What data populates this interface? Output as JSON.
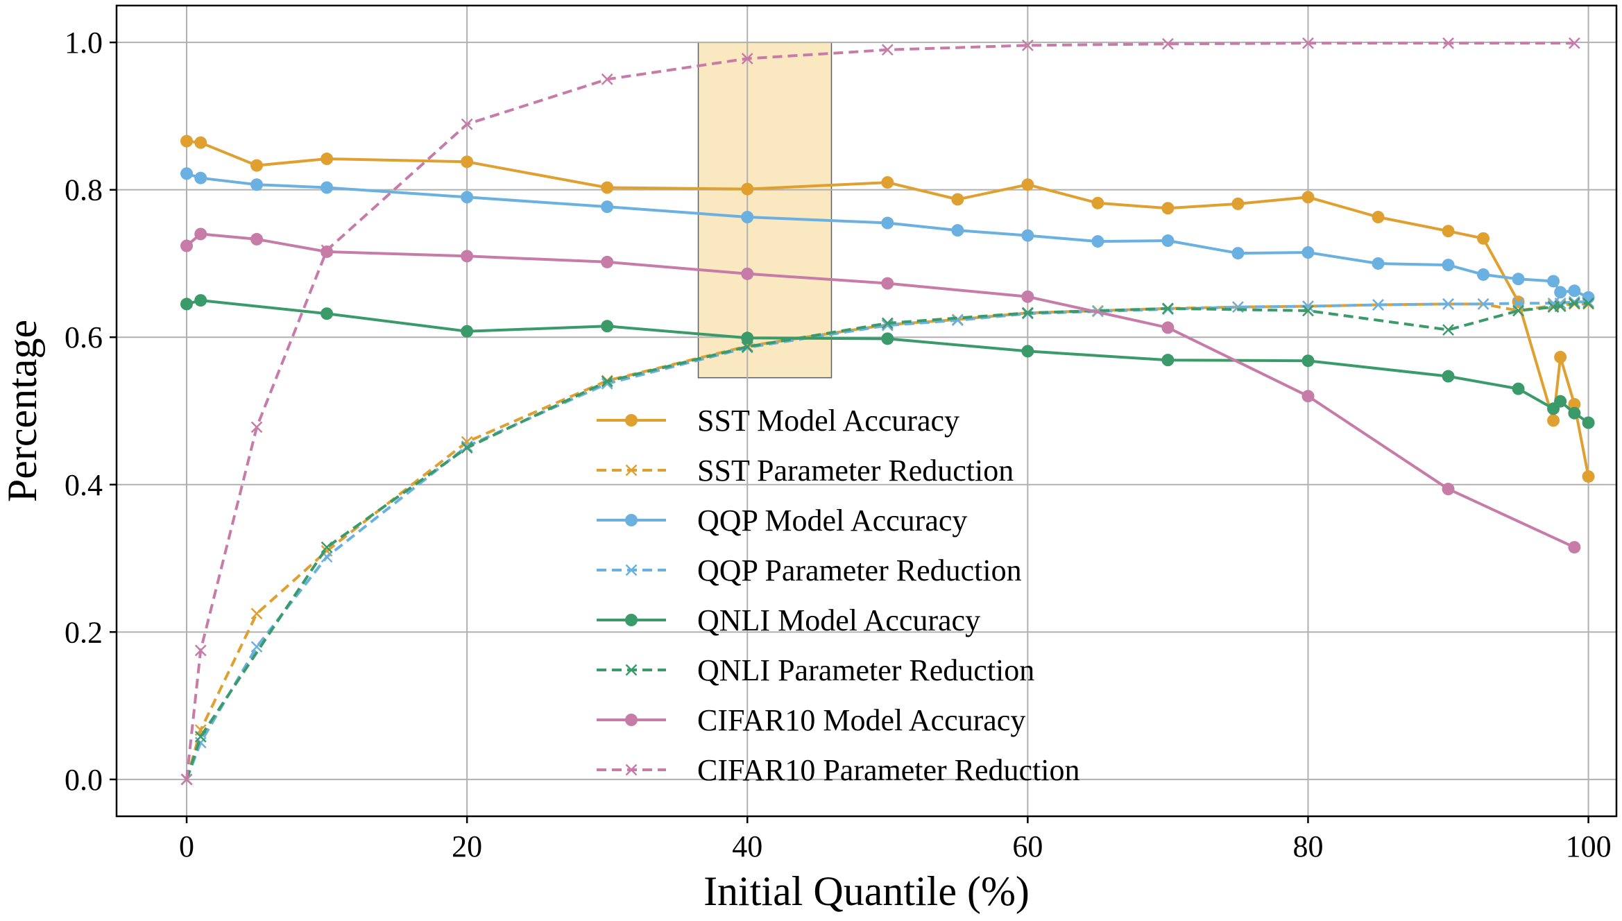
{
  "chart_data": {
    "type": "line",
    "title": "",
    "xlabel": "Initial Quantile (%)",
    "ylabel": "Percentage",
    "xlim": [
      -5,
      102
    ],
    "ylim": [
      -0.05,
      1.05
    ],
    "xticks": [
      0,
      20,
      40,
      60,
      80,
      100
    ],
    "yticks": [
      0.0,
      0.2,
      0.4,
      0.6,
      0.8,
      1.0
    ],
    "xtick_labels": [
      "0",
      "20",
      "40",
      "60",
      "80",
      "100"
    ],
    "ytick_labels": [
      "0.0",
      "0.2",
      "0.4",
      "0.6",
      "0.8",
      "1.0"
    ],
    "grid": true,
    "legend_position": "lower-center",
    "highlight_region": {
      "x0": 36.5,
      "x1": 46,
      "y0": 0.545,
      "y1": 1.0,
      "color": "#fae8bd"
    },
    "series": [
      {
        "name": "SST Model Accuracy",
        "color": "#e0a030",
        "style": "solid",
        "marker": "o",
        "x": [
          0,
          1,
          5,
          10,
          20,
          30,
          40,
          50,
          55,
          60,
          65,
          70,
          75,
          80,
          85,
          90,
          92.5,
          95,
          97.5,
          98,
          99,
          100
        ],
        "y": [
          0.866,
          0.864,
          0.833,
          0.842,
          0.838,
          0.803,
          0.801,
          0.81,
          0.787,
          0.807,
          0.782,
          0.775,
          0.781,
          0.79,
          0.763,
          0.744,
          0.734,
          0.648,
          0.487,
          0.573,
          0.509,
          0.411
        ]
      },
      {
        "name": "SST Parameter Reduction",
        "color": "#e0a030",
        "style": "dashed",
        "marker": "x",
        "x": [
          0,
          1,
          5,
          10,
          20,
          30,
          40,
          50,
          55,
          60,
          65,
          70,
          75,
          80,
          85,
          90,
          92.5,
          95,
          97.5,
          98,
          99,
          100
        ],
        "y": [
          0.0,
          0.067,
          0.225,
          0.31,
          0.458,
          0.541,
          0.588,
          0.617,
          0.624,
          0.633,
          0.636,
          0.639,
          0.641,
          0.642,
          0.644,
          0.645,
          0.645,
          0.636,
          0.643,
          0.644,
          0.645,
          0.645
        ]
      },
      {
        "name": "QQP Model Accuracy",
        "color": "#6ab0e0",
        "style": "solid",
        "marker": "o",
        "x": [
          0,
          1,
          5,
          10,
          20,
          30,
          40,
          50,
          55,
          60,
          65,
          70,
          75,
          80,
          85,
          90,
          92.5,
          95,
          97.5,
          98,
          99,
          100
        ],
        "y": [
          0.822,
          0.816,
          0.807,
          0.803,
          0.79,
          0.777,
          0.763,
          0.755,
          0.745,
          0.738,
          0.73,
          0.731,
          0.714,
          0.715,
          0.7,
          0.698,
          0.685,
          0.679,
          0.676,
          0.661,
          0.663,
          0.654
        ]
      },
      {
        "name": "QQP Parameter Reduction",
        "color": "#6ab0e0",
        "style": "dashed",
        "marker": "x",
        "x": [
          0,
          1,
          5,
          10,
          20,
          30,
          40,
          50,
          55,
          60,
          65,
          70,
          75,
          80,
          85,
          90,
          92.5,
          95,
          97.5,
          98,
          99,
          100
        ],
        "y": [
          0.0,
          0.05,
          0.18,
          0.302,
          0.452,
          0.537,
          0.586,
          0.616,
          0.623,
          0.632,
          0.635,
          0.638,
          0.641,
          0.642,
          0.644,
          0.645,
          0.645,
          0.646,
          0.646,
          0.646,
          0.648,
          0.648
        ]
      },
      {
        "name": "QNLI Model Accuracy",
        "color": "#3a9a6a",
        "style": "solid",
        "marker": "o",
        "x": [
          0,
          1,
          10,
          20,
          30,
          40,
          50,
          60,
          70,
          80,
          90,
          95,
          97.5,
          98,
          99,
          100
        ],
        "y": [
          0.645,
          0.65,
          0.632,
          0.608,
          0.615,
          0.599,
          0.598,
          0.581,
          0.569,
          0.568,
          0.547,
          0.53,
          0.503,
          0.513,
          0.497,
          0.484
        ]
      },
      {
        "name": "QNLI Parameter Reduction",
        "color": "#3a9a6a",
        "style": "dashed",
        "marker": "x",
        "x": [
          0,
          1,
          10,
          20,
          30,
          40,
          50,
          60,
          70,
          80,
          90,
          95,
          97.5,
          98,
          99,
          100
        ],
        "y": [
          0.0,
          0.058,
          0.315,
          0.45,
          0.54,
          0.587,
          0.619,
          0.633,
          0.639,
          0.636,
          0.61,
          0.636,
          0.641,
          0.642,
          0.646,
          0.646
        ]
      },
      {
        "name": "CIFAR10 Model Accuracy",
        "color": "#c77ba7",
        "style": "solid",
        "marker": "o",
        "x": [
          0,
          1,
          5,
          10,
          20,
          30,
          40,
          50,
          60,
          70,
          80,
          90,
          99
        ],
        "y": [
          0.724,
          0.74,
          0.733,
          0.716,
          0.71,
          0.702,
          0.686,
          0.673,
          0.655,
          0.613,
          0.52,
          0.394,
          0.315
        ]
      },
      {
        "name": "CIFAR10 Parameter Reduction",
        "color": "#c77ba7",
        "style": "dashed",
        "marker": "x",
        "x": [
          0,
          1,
          5,
          10,
          20,
          30,
          40,
          50,
          60,
          70,
          80,
          90,
          99
        ],
        "y": [
          0.0,
          0.175,
          0.478,
          0.718,
          0.889,
          0.95,
          0.978,
          0.99,
          0.996,
          0.998,
          0.999,
          0.999,
          0.999
        ]
      }
    ]
  }
}
